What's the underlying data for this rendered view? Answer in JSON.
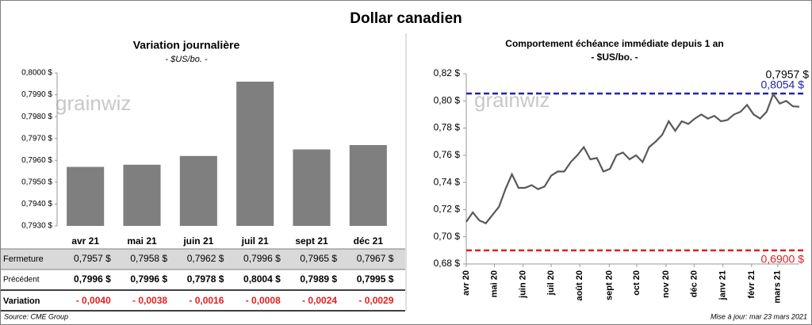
{
  "title": "Dollar canadien",
  "source": "Source: CME Group",
  "updated": "Mise à jour: mar 23 mars 2021",
  "watermark": "grainwiz",
  "chart_data": [
    {
      "type": "bar",
      "title": "Variation  journalière",
      "subtitle": "- $US/bo. -",
      "categories": [
        "avr 21",
        "mai 21",
        "juin 21",
        "juil 21",
        "sept 21",
        "déc 21"
      ],
      "values": [
        0.7957,
        0.7958,
        0.7962,
        0.7996,
        0.7965,
        0.7967
      ],
      "color": "#7f7f7f",
      "ylim": [
        0.793,
        0.8
      ],
      "yticks": [
        {
          "value": 0.793,
          "label": "0,7930 $"
        },
        {
          "value": 0.794,
          "label": "0,7940 $"
        },
        {
          "value": 0.795,
          "label": "0,7950 $"
        },
        {
          "value": 0.796,
          "label": "0,7960 $"
        },
        {
          "value": 0.797,
          "label": "0,7970 $"
        },
        {
          "value": 0.798,
          "label": "0,7980 $"
        },
        {
          "value": 0.799,
          "label": "0,7990 $"
        },
        {
          "value": 0.8,
          "label": "0,8000 $"
        }
      ]
    },
    {
      "type": "line",
      "title": "Comportement échéance immédiate depuis 1 an",
      "subtitle": "- $US/bo. -",
      "x": [
        0,
        1,
        2,
        3,
        4,
        5,
        6,
        7,
        8,
        9,
        10,
        11,
        12,
        13,
        14,
        15,
        16,
        17,
        18,
        19,
        20,
        21,
        22,
        23,
        24,
        25,
        26,
        27,
        28,
        29,
        30,
        31,
        32,
        33,
        34,
        35,
        36,
        37,
        38,
        39,
        40,
        41,
        42,
        43,
        44,
        45,
        46,
        47,
        48,
        49,
        50,
        51
      ],
      "xlim": [
        0,
        51
      ],
      "xticks": [
        {
          "value": 0,
          "label": "avr 20"
        },
        {
          "value": 4.3,
          "label": "mai 20"
        },
        {
          "value": 8.7,
          "label": "juin 20"
        },
        {
          "value": 13,
          "label": "juil 20"
        },
        {
          "value": 17.4,
          "label": "août 20"
        },
        {
          "value": 21.9,
          "label": "sept 20"
        },
        {
          "value": 26.1,
          "label": "oct 20"
        },
        {
          "value": 30.6,
          "label": "nov 20"
        },
        {
          "value": 34.9,
          "label": "déc 20"
        },
        {
          "value": 39.3,
          "label": "janv 21"
        },
        {
          "value": 43.7,
          "label": "févr 21"
        },
        {
          "value": 47.7,
          "label": "mars 21"
        }
      ],
      "series": [
        {
          "name": "Dollar canadien",
          "color": "#595959",
          "values": [
            0.711,
            0.718,
            0.712,
            0.71,
            0.716,
            0.722,
            0.735,
            0.746,
            0.736,
            0.736,
            0.738,
            0.735,
            0.737,
            0.745,
            0.748,
            0.748,
            0.755,
            0.76,
            0.766,
            0.757,
            0.758,
            0.748,
            0.75,
            0.76,
            0.762,
            0.757,
            0.76,
            0.755,
            0.766,
            0.77,
            0.775,
            0.785,
            0.778,
            0.785,
            0.783,
            0.787,
            0.79,
            0.787,
            0.789,
            0.785,
            0.786,
            0.79,
            0.792,
            0.797,
            0.79,
            0.787,
            0.792,
            0.805,
            0.798,
            0.8,
            0.796,
            0.7957
          ]
        }
      ],
      "last_value_label": "0,7957 $",
      "hlines": [
        {
          "value": 0.8054,
          "label": "0,8054 $",
          "color": "#2323a8"
        },
        {
          "value": 0.69,
          "label": "0,6900 $",
          "color": "#e01f1f"
        }
      ],
      "ylim": [
        0.68,
        0.82
      ],
      "yticks": [
        {
          "value": 0.68,
          "label": "0,68 $"
        },
        {
          "value": 0.7,
          "label": "0,70 $"
        },
        {
          "value": 0.72,
          "label": "0,72 $"
        },
        {
          "value": 0.74,
          "label": "0,74 $"
        },
        {
          "value": 0.76,
          "label": "0,76 $"
        },
        {
          "value": 0.78,
          "label": "0,78 $"
        },
        {
          "value": 0.8,
          "label": "0,80 $"
        },
        {
          "value": 0.82,
          "label": "0,82 $"
        }
      ]
    }
  ],
  "table": {
    "rows": [
      {
        "label": "Fermeture",
        "cells": [
          "0,7957  $",
          "0,7958  $",
          "0,7962  $",
          "0,7996  $",
          "0,7965  $",
          "0,7967  $"
        ]
      },
      {
        "label": "Précédent",
        "cells": [
          "0,7996  $",
          "0,7996  $",
          "0,7978  $",
          "0,8004  $",
          "0,7989  $",
          "0,7995  $"
        ]
      },
      {
        "label": "Variation",
        "cells": [
          "- 0,0040",
          "- 0,0038",
          "- 0,0016",
          "- 0,0008",
          "- 0,0024",
          "- 0,0029"
        ]
      }
    ]
  }
}
